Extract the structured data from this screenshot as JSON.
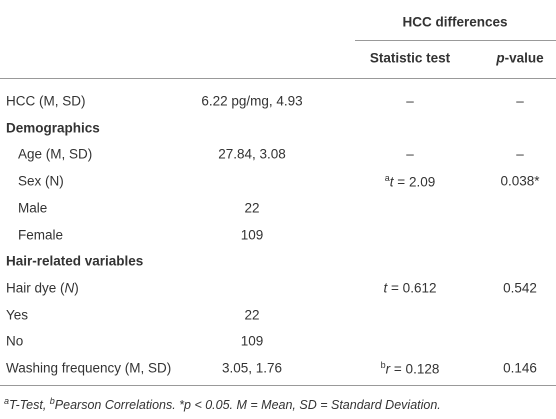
{
  "header": {
    "group": "HCC differences",
    "columns": [
      "Statistic test",
      [
        {
          "text": "p",
          "style": "italic"
        },
        {
          "text": "-value"
        }
      ]
    ]
  },
  "table": {
    "rows": [
      {
        "label": "HCC (M, SD)",
        "value": "6.22 pg/mg, 4.93",
        "stat": "–",
        "p": "–"
      },
      {
        "label": "Demographics",
        "bold": true
      },
      {
        "label": "Age (M, SD)",
        "indent": true,
        "value": "27.84, 3.08",
        "stat": "–",
        "p": "–"
      },
      {
        "label": "Sex (N)",
        "indent": true,
        "stat": [
          {
            "text": "a",
            "style": "sup"
          },
          {
            "text": "t",
            "style": "italic"
          },
          {
            "text": " = 2.09"
          }
        ],
        "p": "0.038*"
      },
      {
        "label": "Male",
        "indent": true,
        "value": "22"
      },
      {
        "label": "Female",
        "indent": true,
        "value": "109"
      },
      {
        "label": "Hair-related variables",
        "bold": true
      },
      {
        "label": [
          {
            "text": "Hair dye ("
          },
          {
            "text": "N",
            "style": "italic"
          },
          {
            "text": ")"
          }
        ],
        "stat": [
          {
            "text": "t",
            "style": "italic"
          },
          {
            "text": " = 0.612"
          }
        ],
        "p": "0.542"
      },
      {
        "label": "Yes",
        "value": "22"
      },
      {
        "label": "No",
        "value": "109"
      },
      {
        "label": "Washing frequency (M, SD)",
        "value": "3.05, 1.76",
        "stat": [
          {
            "text": "b",
            "style": "sup"
          },
          {
            "text": "r",
            "style": "italic"
          },
          {
            "text": " = 0.128"
          }
        ],
        "p": "0.146"
      }
    ]
  },
  "footnote": [
    {
      "text": "a",
      "style": "sup"
    },
    {
      "text": "T-Test, "
    },
    {
      "text": "b",
      "style": "sup"
    },
    {
      "text": "Pearson Correlations. *p < 0.05. M = Mean, SD = Standard Deviation."
    }
  ]
}
